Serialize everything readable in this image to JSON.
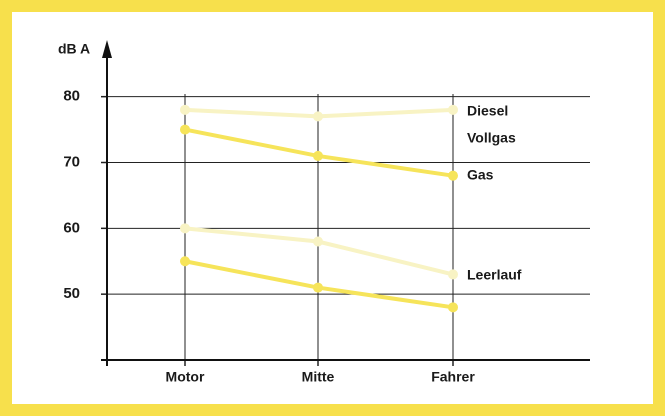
{
  "chart_data": {
    "type": "line",
    "y_label": "dB A",
    "categories": [
      "Motor",
      "Mitte",
      "Fahrer"
    ],
    "series": [
      {
        "color": "#f8f3c4",
        "values": [
          78,
          77,
          78
        ]
      },
      {
        "color": "#f6e45a",
        "values": [
          75,
          71,
          68
        ]
      },
      {
        "color": "#f8f3c4",
        "values": [
          60,
          58,
          53
        ]
      },
      {
        "color": "#f6e45a",
        "values": [
          55,
          51,
          48
        ]
      }
    ],
    "annotations": [
      "Diesel",
      "Vollgas",
      "Gas",
      "Leerlauf"
    ],
    "ylim": [
      40,
      88
    ],
    "yticks": [
      50,
      60,
      70,
      80
    ],
    "grid": true
  }
}
